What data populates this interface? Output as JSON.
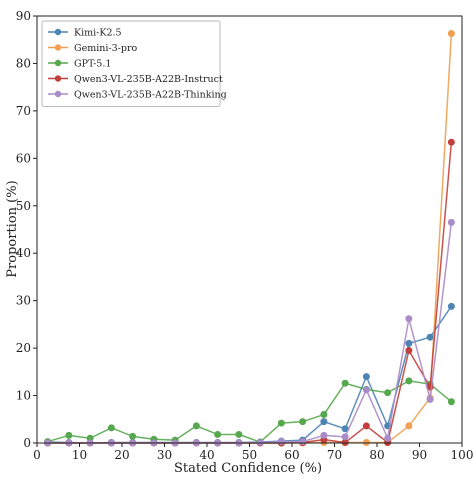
{
  "chart_data": {
    "type": "line",
    "title": "",
    "xlabel": "Stated Confidence (%)",
    "ylabel": "Proportion (%)",
    "xlim": [
      0,
      100
    ],
    "ylim": [
      0,
      90
    ],
    "xticks": [
      0,
      10,
      20,
      30,
      40,
      50,
      60,
      70,
      80,
      90,
      100
    ],
    "yticks": [
      0,
      10,
      20,
      30,
      40,
      50,
      60,
      70,
      80,
      90
    ],
    "grid": false,
    "legend_position": "top-left",
    "x": [
      2.5,
      7.5,
      12.5,
      17.5,
      22.5,
      27.5,
      32.5,
      37.5,
      42.5,
      47.5,
      52.5,
      57.5,
      62.5,
      67.5,
      72.5,
      77.5,
      82.5,
      87.5,
      92.5,
      97.5
    ],
    "series": [
      {
        "name": "Kimi-K2.5",
        "color": "#4c84b4",
        "values": [
          0.2,
          0.1,
          0.0,
          0.1,
          0.1,
          0.1,
          0.1,
          0.1,
          0.1,
          0.1,
          0.2,
          0.4,
          0.6,
          4.5,
          3.0,
          14.0,
          3.6,
          21.0,
          22.3,
          28.8
        ]
      },
      {
        "name": "Gemini-3-pro",
        "color": "#f0a050",
        "values": [
          0.0,
          0.0,
          0.0,
          0.0,
          0.0,
          0.0,
          0.0,
          0.0,
          0.0,
          0.0,
          0.0,
          0.0,
          0.0,
          0.1,
          0.1,
          0.1,
          0.1,
          3.6,
          9.5,
          86.3
        ]
      },
      {
        "name": "GPT-5.1",
        "color": "#56a84e",
        "values": [
          0.3,
          1.6,
          1.0,
          3.2,
          1.4,
          0.8,
          0.6,
          3.6,
          1.8,
          1.8,
          0.2,
          4.2,
          4.5,
          6.0,
          12.6,
          11.3,
          10.6,
          13.1,
          12.4,
          8.7
        ]
      },
      {
        "name": "Qwen3-VL-235B-A22B-Instruct",
        "color": "#c2403c",
        "values": [
          0.0,
          0.0,
          0.0,
          0.0,
          0.0,
          0.0,
          0.0,
          0.0,
          0.0,
          0.0,
          0.0,
          0.0,
          0.1,
          0.7,
          0.1,
          3.6,
          0.1,
          19.5,
          11.8,
          63.4
        ]
      },
      {
        "name": "Qwen3-VL-235B-A22B-Thinking",
        "color": "#a88bc8",
        "values": [
          0.0,
          0.0,
          0.0,
          0.0,
          0.0,
          0.0,
          0.0,
          0.0,
          0.0,
          0.0,
          0.1,
          0.3,
          0.3,
          1.6,
          1.3,
          11.2,
          1.0,
          26.2,
          9.2,
          46.5
        ]
      }
    ]
  }
}
